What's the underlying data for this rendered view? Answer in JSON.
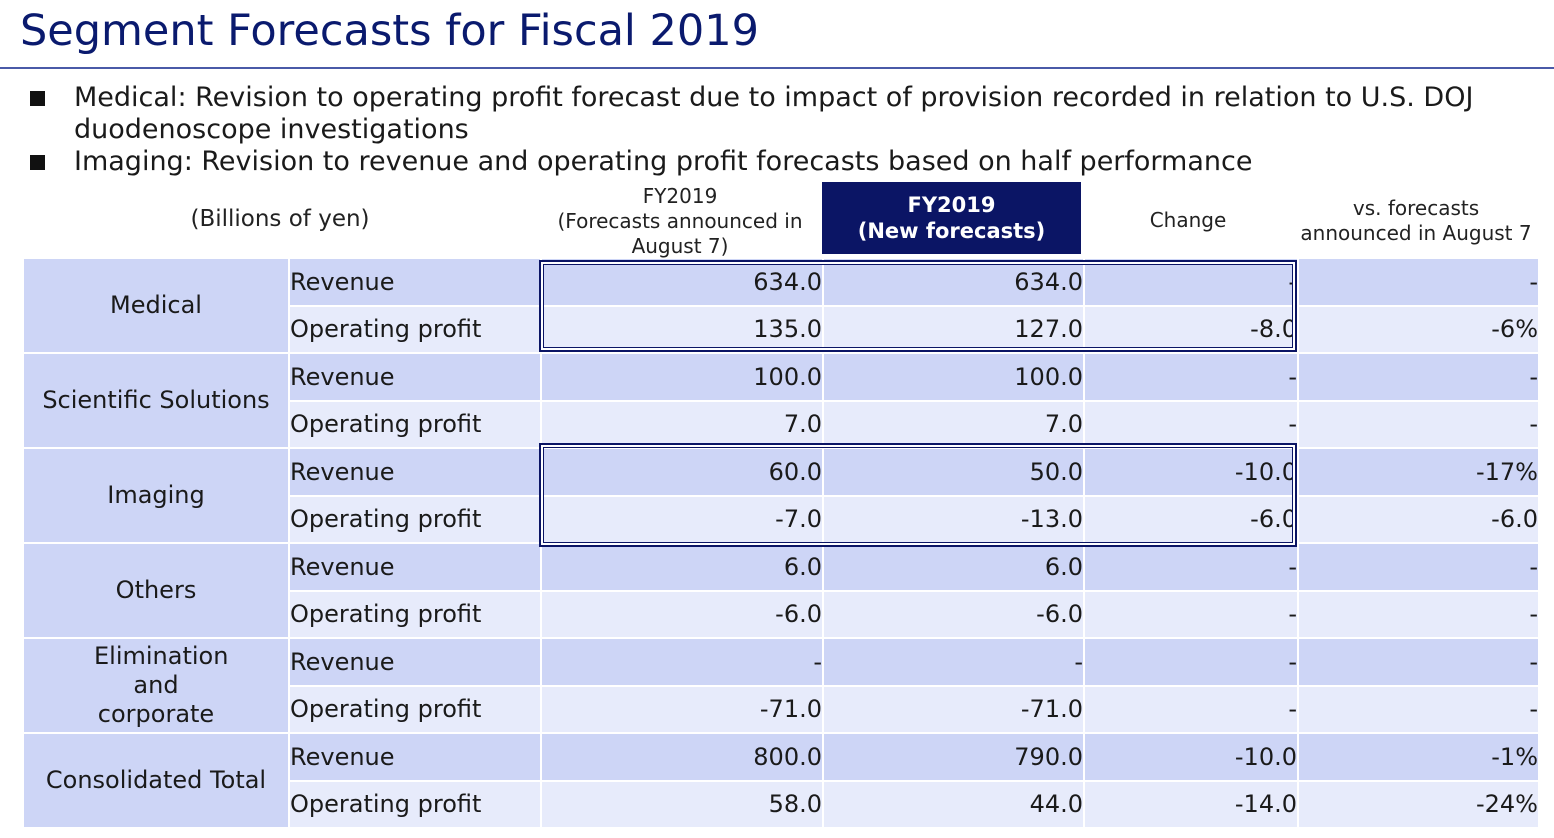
{
  "title": "Segment Forecasts for Fiscal 2019",
  "bullets": [
    "Medical: Revision to operating profit forecast due to impact of provision recorded in relation to U.S. DOJ duodenoscope investigations",
    "Imaging: Revision to revenue and operating profit forecasts based on half performance"
  ],
  "header": {
    "units": "(Billions of yen)",
    "prev_line1": "FY2019",
    "prev_line2": "(Forecasts announced in August 7)",
    "new_line1": "FY2019",
    "new_line2": "(New forecasts)",
    "change": "Change",
    "vs": "vs. forecasts announced in August 7"
  },
  "segments": [
    {
      "name": "Medical",
      "rows": [
        {
          "item": "Revenue",
          "prev": "634.0",
          "new": "634.0",
          "change": "-",
          "vs": "-"
        },
        {
          "item": "Operating profit",
          "prev": "135.0",
          "new": "127.0",
          "change": "-8.0",
          "vs": "-6%"
        }
      ]
    },
    {
      "name": "Scientific Solutions",
      "rows": [
        {
          "item": "Revenue",
          "prev": "100.0",
          "new": "100.0",
          "change": "-",
          "vs": "-"
        },
        {
          "item": "Operating profit",
          "prev": "7.0",
          "new": "7.0",
          "change": "-",
          "vs": "-"
        }
      ]
    },
    {
      "name": "Imaging",
      "rows": [
        {
          "item": "Revenue",
          "prev": "60.0",
          "new": "50.0",
          "change": "-10.0",
          "vs": "-17%"
        },
        {
          "item": "Operating profit",
          "prev": "-7.0",
          "new": "-13.0",
          "change": "-6.0",
          "vs": "-6.0"
        }
      ]
    },
    {
      "name": "Others",
      "rows": [
        {
          "item": "Revenue",
          "prev": "6.0",
          "new": "6.0",
          "change": "-",
          "vs": "-"
        },
        {
          "item": "Operating profit",
          "prev": "-6.0",
          "new": "-6.0",
          "change": "-",
          "vs": "-"
        }
      ]
    },
    {
      "name": "Elimination and corporate",
      "rows": [
        {
          "item": "Revenue",
          "prev": "-",
          "new": "-",
          "change": "-",
          "vs": "-"
        },
        {
          "item": "Operating profit",
          "prev": "-71.0",
          "new": "-71.0",
          "change": "-",
          "vs": "-"
        }
      ]
    },
    {
      "name": "Consolidated Total",
      "rows": [
        {
          "item": "Revenue",
          "prev": "800.0",
          "new": "790.0",
          "change": "-10.0",
          "vs": "-1%"
        },
        {
          "item": "Operating profit",
          "prev": "58.0",
          "new": "44.0",
          "change": "-14.0",
          "vs": "-24%"
        }
      ]
    }
  ]
}
